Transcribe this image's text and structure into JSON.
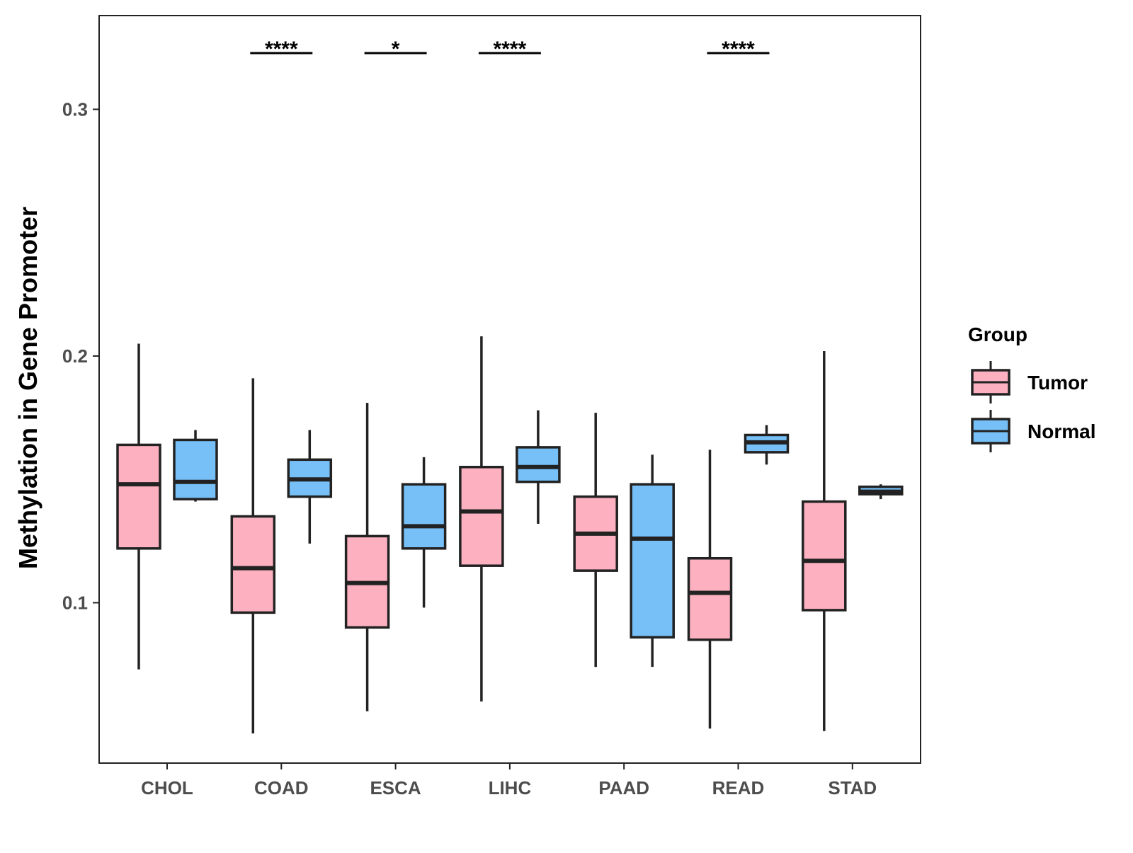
{
  "chart_data": {
    "type": "box",
    "title": "",
    "xlabel": "",
    "ylabel": "Methylation in Gene Promoter",
    "ylim": [
      0.035,
      0.338
    ],
    "yticks": [
      0.1,
      0.2,
      0.3
    ],
    "ytick_labels": [
      "0.1",
      "0.2",
      "0.3"
    ],
    "categories": [
      "CHOL",
      "COAD",
      "ESCA",
      "LIHC",
      "PAAD",
      "READ",
      "STAD"
    ],
    "grid": false,
    "legend": {
      "title": "Group",
      "position": "right",
      "entries": [
        {
          "name": "Tumor",
          "color": "#fcb0c0"
        },
        {
          "name": "Normal",
          "color": "#76c0f7"
        }
      ]
    },
    "series": [
      {
        "name": "Tumor",
        "color": "#fcb0c0",
        "boxes": [
          {
            "category": "CHOL",
            "min": 0.073,
            "q1": 0.122,
            "median": 0.148,
            "q3": 0.164,
            "max": 0.205
          },
          {
            "category": "COAD",
            "min": 0.047,
            "q1": 0.096,
            "median": 0.114,
            "q3": 0.135,
            "max": 0.191
          },
          {
            "category": "ESCA",
            "min": 0.056,
            "q1": 0.09,
            "median": 0.108,
            "q3": 0.127,
            "max": 0.181
          },
          {
            "category": "LIHC",
            "min": 0.06,
            "q1": 0.115,
            "median": 0.137,
            "q3": 0.155,
            "max": 0.208
          },
          {
            "category": "PAAD",
            "min": 0.074,
            "q1": 0.113,
            "median": 0.128,
            "q3": 0.143,
            "max": 0.177
          },
          {
            "category": "READ",
            "min": 0.049,
            "q1": 0.085,
            "median": 0.104,
            "q3": 0.118,
            "max": 0.162
          },
          {
            "category": "STAD",
            "min": 0.048,
            "q1": 0.097,
            "median": 0.117,
            "q3": 0.141,
            "max": 0.202
          }
        ]
      },
      {
        "name": "Normal",
        "color": "#76c0f7",
        "boxes": [
          {
            "category": "CHOL",
            "min": 0.141,
            "q1": 0.142,
            "median": 0.149,
            "q3": 0.166,
            "max": 0.17
          },
          {
            "category": "COAD",
            "min": 0.124,
            "q1": 0.143,
            "median": 0.15,
            "q3": 0.158,
            "max": 0.17
          },
          {
            "category": "ESCA",
            "min": 0.098,
            "q1": 0.122,
            "median": 0.131,
            "q3": 0.148,
            "max": 0.159
          },
          {
            "category": "LIHC",
            "min": 0.132,
            "q1": 0.149,
            "median": 0.155,
            "q3": 0.163,
            "max": 0.178
          },
          {
            "category": "PAAD",
            "min": 0.074,
            "q1": 0.086,
            "median": 0.126,
            "q3": 0.148,
            "max": 0.16
          },
          {
            "category": "READ",
            "min": 0.156,
            "q1": 0.161,
            "median": 0.165,
            "q3": 0.168,
            "max": 0.172
          },
          {
            "category": "STAD",
            "min": 0.142,
            "q1": 0.144,
            "median": 0.145,
            "q3": 0.147,
            "max": 0.148
          }
        ]
      }
    ],
    "significance": [
      {
        "category": "COAD",
        "label": "****"
      },
      {
        "category": "ESCA",
        "label": "*"
      },
      {
        "category": "LIHC",
        "label": "****"
      },
      {
        "category": "READ",
        "label": "****"
      }
    ]
  }
}
